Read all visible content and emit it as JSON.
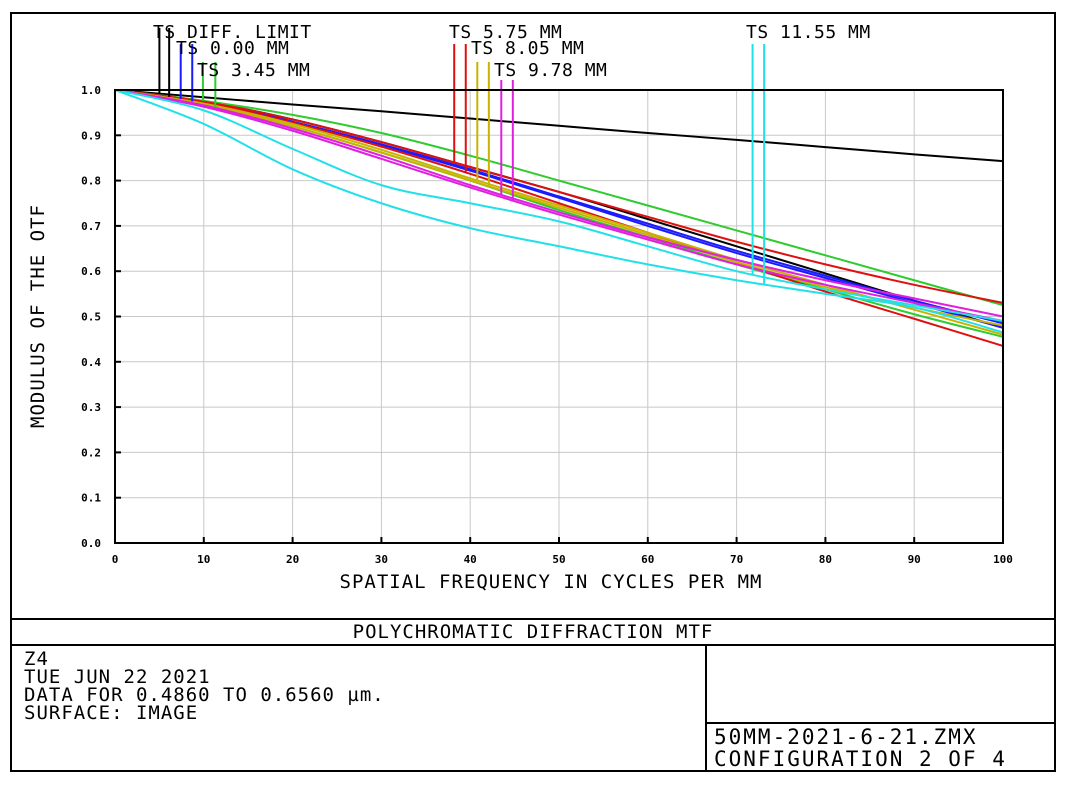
{
  "chart_data": {
    "type": "line",
    "title": "POLYCHROMATIC DIFFRACTION MTF",
    "xlabel": "SPATIAL FREQUENCY IN CYCLES PER MM",
    "ylabel": "MODULUS OF THE OTF",
    "xlim": [
      0,
      100
    ],
    "ylim": [
      0,
      1.0
    ],
    "x_ticks": [
      "0",
      "10",
      "20",
      "30",
      "40",
      "50",
      "60",
      "70",
      "80",
      "90",
      "100"
    ],
    "y_ticks": [
      "0.0",
      "0.1",
      "0.2",
      "0.3",
      "0.4",
      "0.5",
      "0.6",
      "0.7",
      "0.8",
      "0.9",
      "1.0"
    ],
    "grid": true,
    "x": [
      0,
      10,
      20,
      30,
      40,
      50,
      60,
      70,
      80,
      90,
      100
    ],
    "legend": [
      {
        "label": "TS DIFF. LIMIT",
        "color": "#000000",
        "marker_x": [
          5.0,
          6.1
        ]
      },
      {
        "label": "TS 0.00 MM",
        "color": "#1a1aff",
        "marker_x": [
          7.4,
          8.7
        ]
      },
      {
        "label": "TS 3.45 MM",
        "color": "#2ecc2e",
        "marker_x": [
          9.9,
          11.3
        ]
      },
      {
        "label": "TS 5.75 MM",
        "color": "#e01010",
        "marker_x": [
          38.2,
          39.5
        ]
      },
      {
        "label": "TS 8.05 MM",
        "color": "#c8b400",
        "marker_x": [
          40.8,
          42.1
        ]
      },
      {
        "label": "TS 9.78 MM",
        "color": "#e020e0",
        "marker_x": [
          43.5,
          44.8
        ]
      },
      {
        "label": "TS 11.55 MM",
        "color": "#22e0e8",
        "marker_x": [
          71.8,
          73.1
        ]
      }
    ],
    "series": [
      {
        "name": "TS DIFF. LIMIT",
        "color": "#000000",
        "values": [
          1.0,
          0.984,
          0.968,
          0.953,
          0.937,
          0.921,
          0.905,
          0.89,
          0.874,
          0.858,
          0.843
        ]
      },
      {
        "color": "#000000",
        "values": [
          1.0,
          0.975,
          0.935,
          0.885,
          0.83,
          0.775,
          0.715,
          0.655,
          0.595,
          0.535,
          0.475
        ]
      },
      {
        "color": "#1a1aff",
        "values": [
          1.0,
          0.973,
          0.93,
          0.88,
          0.825,
          0.765,
          0.705,
          0.645,
          0.59,
          0.535,
          0.485
        ]
      },
      {
        "color": "#1a1aff",
        "values": [
          1.0,
          0.971,
          0.928,
          0.878,
          0.822,
          0.762,
          0.7,
          0.64,
          0.585,
          0.53,
          0.475
        ]
      },
      {
        "color": "#2ecc2e",
        "values": [
          1.0,
          0.976,
          0.945,
          0.905,
          0.855,
          0.8,
          0.745,
          0.69,
          0.635,
          0.58,
          0.525
        ]
      },
      {
        "color": "#2ecc2e",
        "values": [
          1.0,
          0.968,
          0.92,
          0.862,
          0.8,
          0.735,
          0.675,
          0.615,
          0.56,
          0.505,
          0.455
        ]
      },
      {
        "color": "#e01010",
        "values": [
          1.0,
          0.974,
          0.935,
          0.885,
          0.83,
          0.775,
          0.72,
          0.665,
          0.615,
          0.57,
          0.53
        ]
      },
      {
        "color": "#e01010",
        "values": [
          1.0,
          0.972,
          0.928,
          0.875,
          0.815,
          0.75,
          0.685,
          0.62,
          0.555,
          0.495,
          0.435
        ]
      },
      {
        "color": "#c8b400",
        "values": [
          1.0,
          0.97,
          0.925,
          0.868,
          0.805,
          0.745,
          0.685,
          0.625,
          0.57,
          0.515,
          0.46
        ]
      },
      {
        "color": "#c8b400",
        "values": [
          1.0,
          0.968,
          0.92,
          0.862,
          0.8,
          0.74,
          0.68,
          0.62,
          0.565,
          0.52,
          0.48
        ]
      },
      {
        "color": "#e020e0",
        "values": [
          1.0,
          0.966,
          0.915,
          0.855,
          0.79,
          0.73,
          0.675,
          0.625,
          0.58,
          0.54,
          0.5
        ]
      },
      {
        "color": "#e020e0",
        "values": [
          1.0,
          0.963,
          0.91,
          0.848,
          0.785,
          0.725,
          0.67,
          0.615,
          0.57,
          0.53,
          0.49
        ]
      },
      {
        "color": "#22e0e8",
        "values": [
          1.0,
          0.955,
          0.87,
          0.79,
          0.75,
          0.71,
          0.655,
          0.6,
          0.56,
          0.525,
          0.49
        ]
      },
      {
        "color": "#22e0e8",
        "values": [
          1.0,
          0.925,
          0.825,
          0.75,
          0.695,
          0.655,
          0.615,
          0.58,
          0.55,
          0.52,
          0.465
        ]
      }
    ]
  },
  "info": {
    "line1": "Z4",
    "line2": "TUE JUN 22 2021",
    "line3": "DATA FOR 0.4860 TO 0.6560 µm.",
    "line4": "SURFACE: IMAGE",
    "file": "50MM-2021-6-21.ZMX",
    "config": "CONFIGURATION 2 OF 4"
  }
}
